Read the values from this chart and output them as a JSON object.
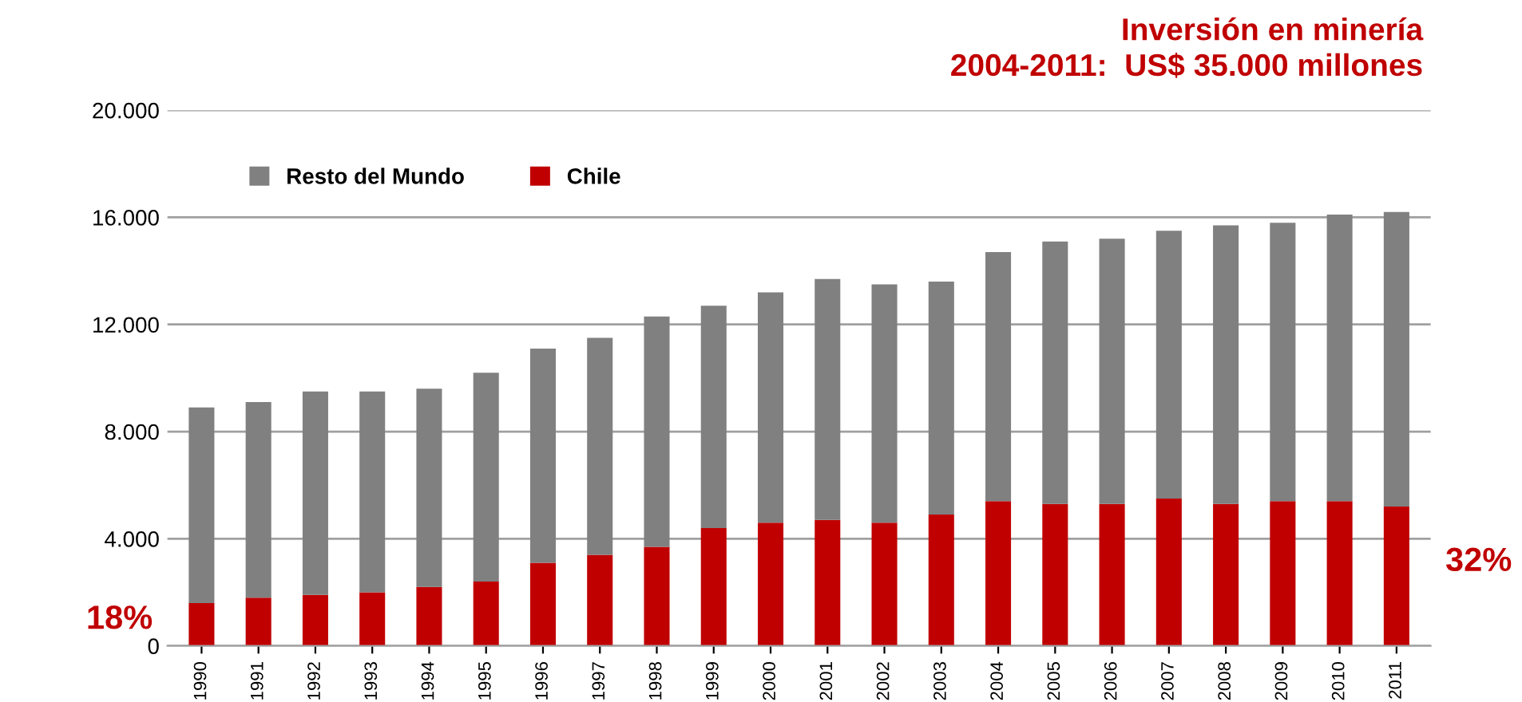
{
  "chart_data": {
    "type": "bar",
    "stacked": true,
    "title": "Inversión en minería\n2004-2011:  US$ 35.000 millones",
    "categories": [
      "1990",
      "1991",
      "1992",
      "1993",
      "1994",
      "1995",
      "1996",
      "1997",
      "1998",
      "1999",
      "2000",
      "2001",
      "2002",
      "2003",
      "2004",
      "2005",
      "2006",
      "2007",
      "2008",
      "2009",
      "2010",
      "2011"
    ],
    "series": [
      {
        "name": "Chile",
        "color": "#c00000",
        "values": [
          1600,
          1800,
          1900,
          2000,
          2200,
          2400,
          3100,
          3400,
          3700,
          4400,
          4600,
          4700,
          4600,
          4900,
          5400,
          5300,
          5300,
          5500,
          5300,
          5400,
          5400,
          5200
        ]
      },
      {
        "name": "Resto del Mundo",
        "color": "#808080",
        "values": [
          7300,
          7300,
          7600,
          7500,
          7400,
          7800,
          8000,
          8100,
          8600,
          8300,
          8600,
          9000,
          8900,
          8700,
          9300,
          9800,
          9900,
          10000,
          10400,
          10400,
          10700,
          11000
        ]
      }
    ],
    "ylim": [
      0,
      20000
    ],
    "yticks": [
      {
        "value": 0,
        "label": "0"
      },
      {
        "value": 4000,
        "label": "4.000"
      },
      {
        "value": 8000,
        "label": "8.000"
      },
      {
        "value": 12000,
        "label": "12.000"
      },
      {
        "value": 16000,
        "label": "16.000"
      },
      {
        "value": 20000,
        "label": "20.000"
      }
    ],
    "grid": "y",
    "legend": "top left",
    "annotations": [
      "18%",
      "32%"
    ]
  }
}
